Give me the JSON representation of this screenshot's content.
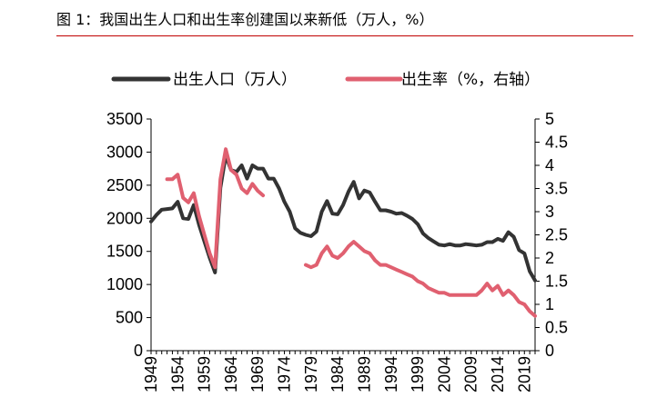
{
  "figure_title": "图 1：我国出生人口和出生率创建国以来新低（万人，%）",
  "chart_data": {
    "type": "line",
    "title": "图 1：我国出生人口和出生率创建国以来新低（万人，%）",
    "x_ticks": [
      "1949",
      "1954",
      "1959",
      "1964",
      "1969",
      "1974",
      "1979",
      "1984",
      "1989",
      "1994",
      "1999",
      "2004",
      "2009",
      "2014",
      "2019"
    ],
    "ylim_left": [
      0,
      3500
    ],
    "ylim_right": [
      0,
      5
    ],
    "y_ticks_left": [
      "0",
      "500",
      "1000",
      "1500",
      "2000",
      "2500",
      "3000",
      "3500"
    ],
    "y_ticks_right": [
      "0",
      "0.5",
      "1",
      "1.5",
      "2",
      "2.5",
      "3",
      "3.5",
      "4",
      "4.5",
      "5"
    ],
    "series": [
      {
        "name": "出生人口（万人）",
        "axis": "left",
        "color": "#333333",
        "x": [
          1949,
          1950,
          1951,
          1952,
          1953,
          1954,
          1955,
          1956,
          1957,
          1958,
          1959,
          1960,
          1961,
          1962,
          1963,
          1964,
          1965,
          1966,
          1967,
          1968,
          1969,
          1970,
          1971,
          1972,
          1973,
          1974,
          1975,
          1976,
          1977,
          1978,
          1979,
          1980,
          1981,
          1982,
          1983,
          1984,
          1985,
          1986,
          1987,
          1988,
          1989,
          1990,
          1991,
          1992,
          1993,
          1994,
          1995,
          1996,
          1997,
          1998,
          1999,
          2000,
          2001,
          2002,
          2003,
          2004,
          2005,
          2006,
          2007,
          2008,
          2009,
          2010,
          2011,
          2012,
          2013,
          2014,
          2015,
          2016,
          2017,
          2018,
          2019,
          2020,
          2021
        ],
        "y": [
          1950,
          2050,
          2130,
          2140,
          2150,
          2250,
          2000,
          1990,
          2200,
          1900,
          1650,
          1400,
          1180,
          2460,
          2950,
          2730,
          2700,
          2800,
          2600,
          2800,
          2750,
          2750,
          2600,
          2600,
          2450,
          2250,
          2100,
          1850,
          1780,
          1750,
          1730,
          1800,
          2100,
          2260,
          2070,
          2060,
          2200,
          2400,
          2550,
          2300,
          2420,
          2390,
          2250,
          2120,
          2120,
          2100,
          2070,
          2080,
          2040,
          1990,
          1910,
          1770,
          1700,
          1650,
          1600,
          1590,
          1610,
          1590,
          1590,
          1610,
          1600,
          1590,
          1600,
          1640,
          1640,
          1690,
          1660,
          1790,
          1720,
          1520,
          1470,
          1200,
          1060
        ]
      },
      {
        "name": "出生率（%，右轴）",
        "axis": "right",
        "color": "#e06070",
        "segments": [
          {
            "x": [
              1952,
              1953,
              1954,
              1955,
              1956,
              1957,
              1958,
              1959,
              1960,
              1961,
              1962,
              1963,
              1964,
              1965,
              1966,
              1967,
              1968,
              1969,
              1970
            ],
            "y": [
              3.7,
              3.7,
              3.8,
              3.3,
              3.2,
              3.4,
              2.9,
              2.5,
              2.1,
              1.8,
              3.7,
              4.35,
              3.9,
              3.8,
              3.5,
              3.4,
              3.6,
              3.45,
              3.35
            ]
          },
          {
            "x": [
              1978,
              1979,
              1980,
              1981,
              1982,
              1983,
              1984,
              1985,
              1986,
              1987,
              1988,
              1989,
              1990,
              1991,
              1992,
              1993,
              1994,
              1995,
              1996,
              1997,
              1998,
              1999,
              2000,
              2001,
              2002,
              2003,
              2004,
              2005,
              2006,
              2007,
              2008,
              2009,
              2010,
              2011,
              2012,
              2013,
              2014,
              2015,
              2016,
              2017,
              2018,
              2019,
              2020,
              2021
            ],
            "y": [
              1.85,
              1.8,
              1.85,
              2.1,
              2.25,
              2.05,
              2.0,
              2.1,
              2.25,
              2.35,
              2.25,
              2.15,
              2.1,
              1.95,
              1.85,
              1.85,
              1.8,
              1.75,
              1.7,
              1.65,
              1.6,
              1.5,
              1.45,
              1.35,
              1.3,
              1.25,
              1.25,
              1.2,
              1.2,
              1.2,
              1.2,
              1.2,
              1.2,
              1.3,
              1.45,
              1.3,
              1.4,
              1.2,
              1.3,
              1.2,
              1.05,
              1.0,
              0.85,
              0.75
            ]
          }
        ]
      }
    ]
  }
}
